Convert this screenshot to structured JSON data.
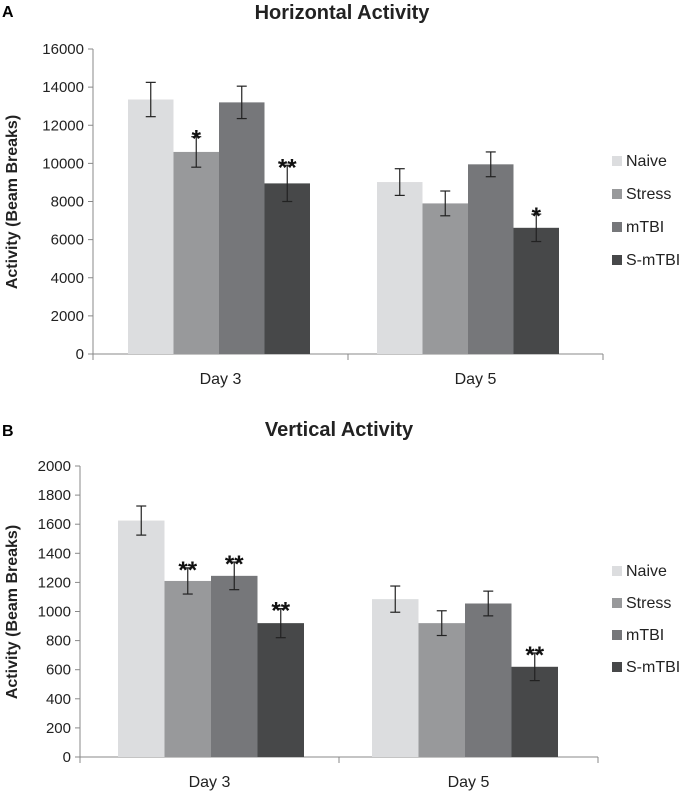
{
  "chart_data": [
    {
      "panel": "A",
      "type": "bar",
      "title": "Horizontal Activity",
      "ylabel": "Activity (Beam Breaks)",
      "xlabel": "",
      "ylim": [
        0,
        16000
      ],
      "yticks": [
        0,
        2000,
        4000,
        6000,
        8000,
        10000,
        12000,
        14000,
        16000
      ],
      "categories": [
        "Day 3",
        "Day 5"
      ],
      "series": [
        {
          "name": "Naive",
          "color": "#dcdddf",
          "values": [
            13350,
            9020
          ],
          "errors": [
            900,
            700
          ],
          "sig": [
            "",
            ""
          ]
        },
        {
          "name": "Stress",
          "color": "#98999b",
          "values": [
            10600,
            7900
          ],
          "errors": [
            800,
            650
          ],
          "sig": [
            "*",
            ""
          ]
        },
        {
          "name": "mTBI",
          "color": "#76777a",
          "values": [
            13200,
            9950
          ],
          "errors": [
            850,
            650
          ],
          "sig": [
            "",
            ""
          ]
        },
        {
          "name": "S-mTBI",
          "color": "#474849",
          "values": [
            8950,
            6620
          ],
          "errors": [
            950,
            720
          ],
          "sig": [
            "**",
            "*"
          ]
        }
      ],
      "legend": "right",
      "grid": false
    },
    {
      "panel": "B",
      "type": "bar",
      "title": "Vertical Activity",
      "ylabel": "Activity (Beam Breaks)",
      "xlabel": "",
      "ylim": [
        0,
        2000
      ],
      "yticks": [
        0,
        200,
        400,
        600,
        800,
        1000,
        1200,
        1400,
        1600,
        1800,
        2000
      ],
      "categories": [
        "Day 3",
        "Day 5"
      ],
      "series": [
        {
          "name": "Naive",
          "color": "#dcdddf",
          "values": [
            1625,
            1085
          ],
          "errors": [
            100,
            90
          ],
          "sig": [
            "",
            ""
          ]
        },
        {
          "name": "Stress",
          "color": "#98999b",
          "values": [
            1210,
            920
          ],
          "errors": [
            90,
            85
          ],
          "sig": [
            "**",
            ""
          ]
        },
        {
          "name": "mTBI",
          "color": "#76777a",
          "values": [
            1245,
            1055
          ],
          "errors": [
            95,
            85
          ],
          "sig": [
            "**",
            ""
          ]
        },
        {
          "name": "S-mTBI",
          "color": "#474849",
          "values": [
            920,
            620
          ],
          "errors": [
            100,
            95
          ],
          "sig": [
            "**",
            "**"
          ]
        }
      ],
      "legend": "right",
      "grid": false
    }
  ]
}
